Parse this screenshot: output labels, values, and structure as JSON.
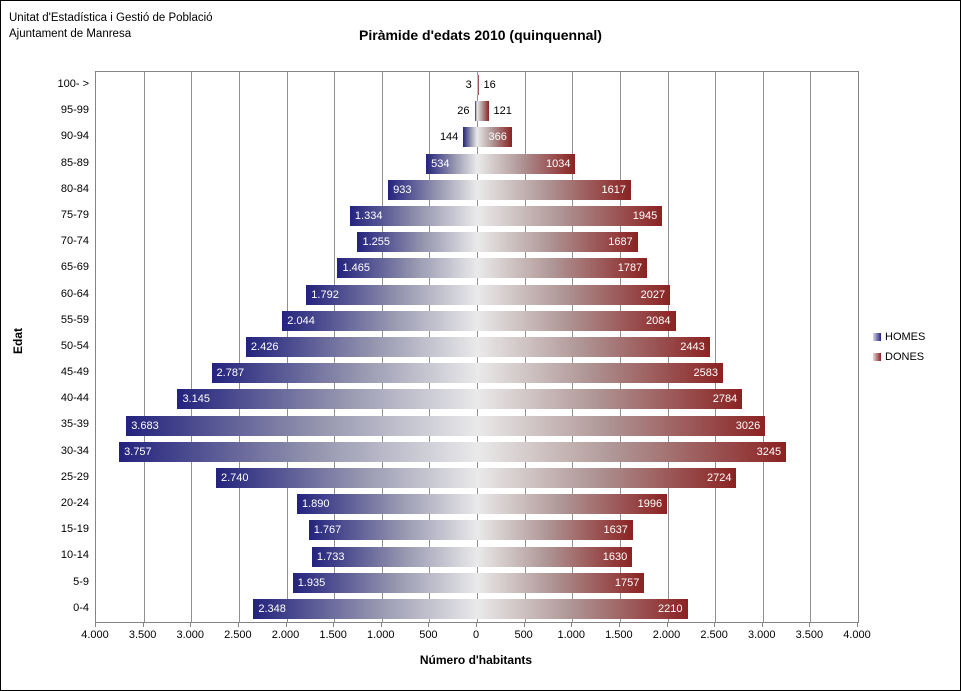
{
  "header": {
    "org_line1": "Unitat d'Estadística i Gestió de Població",
    "org_line2": "Ajuntament de Manresa"
  },
  "title": "Piràmide d'edats 2010 (quinquennal)",
  "chart_data": {
    "type": "bar",
    "subtype": "population-pyramid-horizontal",
    "title": "Piràmide d'edats 2010 (quinquennal)",
    "xlabel": "Número d'habitants",
    "ylabel": "Edat",
    "xlim": [
      -4000,
      4000
    ],
    "grid": true,
    "gridline_step": 500,
    "legend_position": "right",
    "categories": [
      "100- >",
      "95-99",
      "90-94",
      "85-89",
      "80-84",
      "75-79",
      "70-74",
      "65-69",
      "60-64",
      "55-59",
      "50-54",
      "45-49",
      "40-44",
      "35-39",
      "30-34",
      "25-29",
      "20-24",
      "15-19",
      "10-14",
      "5-9",
      "0-4"
    ],
    "series": [
      {
        "name": "HOMES",
        "side": "left",
        "color_dark": "#23237E",
        "values": [
          3,
          26,
          144,
          534,
          933,
          1334,
          1255,
          1465,
          1792,
          2044,
          2426,
          2787,
          3145,
          3683,
          3757,
          2740,
          1890,
          1767,
          1733,
          1935,
          2348
        ],
        "labels": [
          "3",
          "26",
          "144",
          "534",
          "933",
          "1.334",
          "1.255",
          "1.465",
          "1.792",
          "2.044",
          "2.426",
          "2.787",
          "3.145",
          "3.683",
          "3.757",
          "2.740",
          "1.890",
          "1.767",
          "1.733",
          "1.935",
          "2.348"
        ]
      },
      {
        "name": "DONES",
        "side": "right",
        "color_dark": "#8B2222",
        "values": [
          16,
          121,
          366,
          1034,
          1617,
          1945,
          1687,
          1787,
          2027,
          2084,
          2443,
          2583,
          2784,
          3026,
          3245,
          2724,
          1996,
          1637,
          1630,
          1757,
          2210
        ],
        "labels": [
          "16",
          "121",
          "366",
          "1034",
          "1617",
          "1945",
          "1687",
          "1787",
          "2027",
          "2084",
          "2443",
          "2583",
          "2784",
          "3026",
          "3245",
          "2724",
          "1996",
          "1637",
          "1630",
          "1757",
          "2210"
        ]
      }
    ],
    "x_tick_labels": [
      "4.000",
      "3.500",
      "3.000",
      "2.500",
      "2.000",
      "1.500",
      "1.000",
      "500",
      "0",
      "500",
      "1.000",
      "1.500",
      "2.000",
      "2.500",
      "3.000",
      "3.500",
      "4.000"
    ]
  },
  "legend": {
    "items": [
      {
        "label": "HOMES",
        "swatch": "blue-gradient"
      },
      {
        "label": "DONES",
        "swatch": "red-gradient"
      }
    ]
  }
}
